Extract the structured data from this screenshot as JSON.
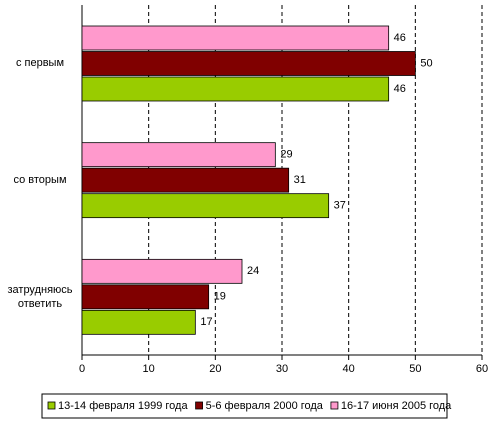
{
  "chart_data": {
    "type": "bar",
    "orientation": "horizontal",
    "categories": [
      "с первым",
      "со вторым",
      "затрудняюсь ответить"
    ],
    "series": [
      {
        "name": "13-14 февраля 1999 года",
        "color": "#99cc00",
        "values": [
          46,
          37,
          17
        ]
      },
      {
        "name": "5-6 февраля 2000 года",
        "color": "#800000",
        "values": [
          50,
          31,
          19
        ]
      },
      {
        "name": "16-17 июня 2005 года",
        "color": "#ff99cc",
        "values": [
          46,
          29,
          24
        ]
      }
    ],
    "xlim": [
      0,
      60
    ],
    "xticks": [
      0,
      10,
      20,
      30,
      40,
      50,
      60
    ],
    "grid": true,
    "legend": "bottom"
  }
}
